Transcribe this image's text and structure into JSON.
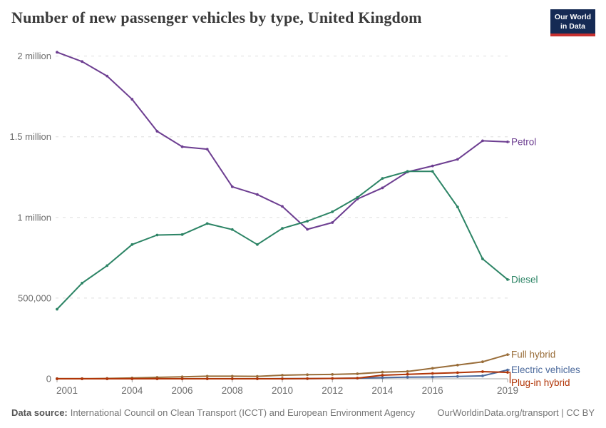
{
  "header": {
    "title": "Number of new passenger vehicles by type, United Kingdom",
    "logo": {
      "line1": "Our World",
      "line2": "in Data",
      "bg_color": "#152A54",
      "stripe_color": "#C7302F"
    }
  },
  "footer": {
    "source_label": "Data source:",
    "source_text": "International Council on Clean Transport (ICCT) and European Environment Agency",
    "credit_text": "OurWorldinData.org/transport | CC BY"
  },
  "chart_data": {
    "type": "line",
    "title": "Number of new passenger vehicles by type, United Kingdom",
    "xlabel": "",
    "ylabel": "",
    "x": [
      2001,
      2002,
      2003,
      2004,
      2005,
      2006,
      2007,
      2008,
      2009,
      2010,
      2011,
      2012,
      2013,
      2014,
      2015,
      2016,
      2017,
      2018,
      2019
    ],
    "x_tick_labels": [
      2001,
      2004,
      2006,
      2008,
      2010,
      2012,
      2014,
      2016,
      2019
    ],
    "ylim": [
      0,
      2000000
    ],
    "y_ticks": [
      {
        "value": 0,
        "label": "0"
      },
      {
        "value": 500000,
        "label": "500,000"
      },
      {
        "value": 1000000,
        "label": "1 million"
      },
      {
        "value": 1500000,
        "label": "1.5 million"
      },
      {
        "value": 2000000,
        "label": "2 million"
      }
    ],
    "grid": "horizontal-dashed",
    "legend_position": "right-end-labels",
    "colors": {
      "grid": "#dedede",
      "axis": "#a5a5a5",
      "tick_label": "#6e6e6e"
    },
    "series": [
      {
        "name": "Petrol",
        "color": "#6D3E91",
        "values": [
          2024000,
          1966000,
          1876000,
          1732000,
          1534000,
          1438000,
          1423000,
          1190000,
          1142000,
          1068000,
          926000,
          968000,
          1114000,
          1183000,
          1282000,
          1319000,
          1360000,
          1475000,
          1468000
        ]
      },
      {
        "name": "Diesel",
        "color": "#2C8465",
        "values": [
          431000,
          593000,
          701000,
          832000,
          891000,
          894000,
          962000,
          925000,
          832000,
          932000,
          977000,
          1035000,
          1124000,
          1242000,
          1285000,
          1285000,
          1065000,
          743000,
          615000
        ]
      },
      {
        "name": "Full hybrid",
        "color": "#996D39",
        "values": [
          1000,
          1000,
          2000,
          5000,
          9000,
          12000,
          16000,
          16000,
          15000,
          22000,
          25000,
          27000,
          31000,
          41000,
          45000,
          65000,
          85000,
          105000,
          150000
        ]
      },
      {
        "name": "Electric vehicles",
        "color": "#4C6A9C",
        "values": [
          0,
          0,
          0,
          0,
          0,
          0,
          0,
          0,
          0,
          1000,
          1000,
          2000,
          4000,
          7000,
          10000,
          11000,
          14000,
          18000,
          55000
        ]
      },
      {
        "name": "Plug-in hybrid",
        "color": "#B13507",
        "values": [
          0,
          0,
          0,
          0,
          0,
          0,
          0,
          0,
          0,
          0,
          1000,
          2000,
          4000,
          22000,
          28000,
          33000,
          38000,
          44000,
          40000
        ]
      }
    ]
  }
}
